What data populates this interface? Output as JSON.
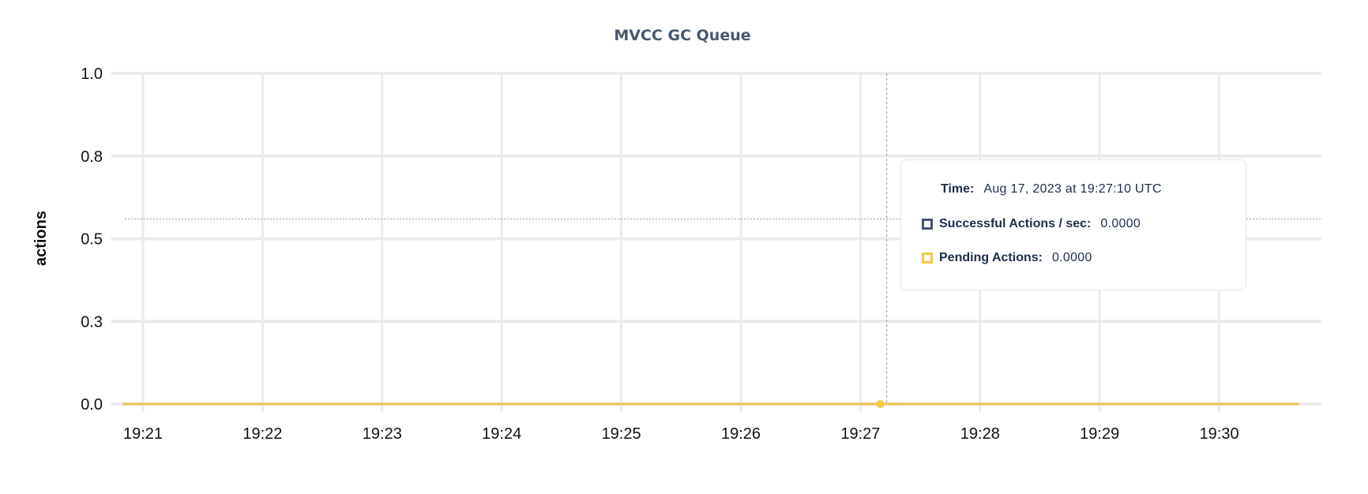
{
  "chart_data": {
    "type": "line",
    "title": "MVCC GC Queue",
    "ylabel": "actions",
    "xlabel": "",
    "ylim": [
      0,
      1.0
    ],
    "yticks": [
      {
        "value": 0,
        "label": "0.0"
      },
      {
        "value": 0.25,
        "label": "0.3"
      },
      {
        "value": 0.5,
        "label": "0.5"
      },
      {
        "value": 0.75,
        "label": "0.8"
      },
      {
        "value": 1.0,
        "label": "1.0"
      }
    ],
    "xticks": [
      "19:21",
      "19:22",
      "19:23",
      "19:24",
      "19:25",
      "19:26",
      "19:27",
      "19:28",
      "19:29",
      "19:30"
    ],
    "xrange": [
      "19:20:50",
      "19:30:40"
    ],
    "grid": true,
    "series": [
      {
        "name": "Successful Actions / sec",
        "color": "#475872",
        "x": [
          "19:20:50",
          "19:30:40"
        ],
        "y": [
          0,
          0
        ]
      },
      {
        "name": "Pending Actions",
        "color": "#f5c944",
        "x": [
          "19:20:50",
          "19:30:40"
        ],
        "y": [
          0,
          0
        ]
      }
    ],
    "hover": {
      "time": "19:27:10",
      "crosshair_y": 0.56
    }
  },
  "tooltip": {
    "time_label": "Time:",
    "time_value": "Aug 17, 2023 at 19:27:10 UTC",
    "rows": [
      {
        "label": "Successful Actions / sec:",
        "value": "0.0000",
        "color": "#475872"
      },
      {
        "label": "Pending Actions:",
        "value": "0.0000",
        "color": "#f5c944"
      }
    ]
  }
}
